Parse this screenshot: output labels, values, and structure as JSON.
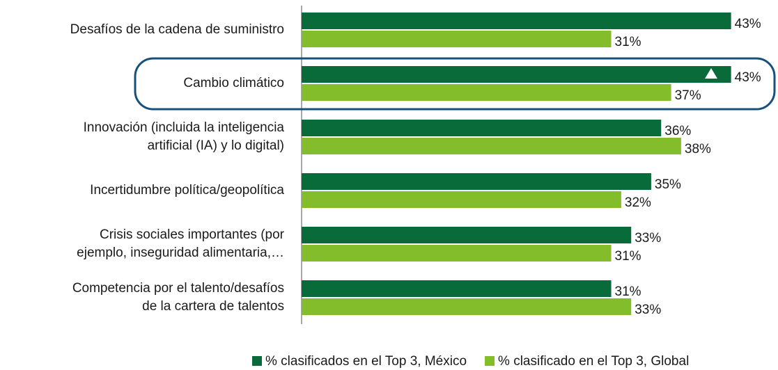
{
  "chart_data": {
    "type": "hbar",
    "categories": [
      "Desafíos de la cadena de suministro",
      "Cambio climático",
      "Innovación (incluida la inteligencia\nartificial (IA) y lo digital)",
      "Incertidumbre política/geopolítica",
      "Crisis sociales importantes (por\nejemplo, inseguridad alimentaria,…",
      "Competencia por el talento/desafíos\nde la cartera de talentos"
    ],
    "series": [
      {
        "name": "% clasificados en el Top 3, México",
        "color": "#0a6b3a",
        "values": [
          43,
          43,
          36,
          35,
          33,
          31
        ],
        "value_labels": [
          "43%",
          "43%",
          "36%",
          "35%",
          "33%",
          "31%"
        ]
      },
      {
        "name": "% clasificado en el Top 3, Global",
        "color": "#84bd2b",
        "values": [
          31,
          37,
          38,
          32,
          31,
          33
        ],
        "value_labels": [
          "31%",
          "37%",
          "38%",
          "32%",
          "31%",
          "33%"
        ]
      }
    ],
    "xlim": [
      0,
      47
    ],
    "legend": "bottom"
  }
}
